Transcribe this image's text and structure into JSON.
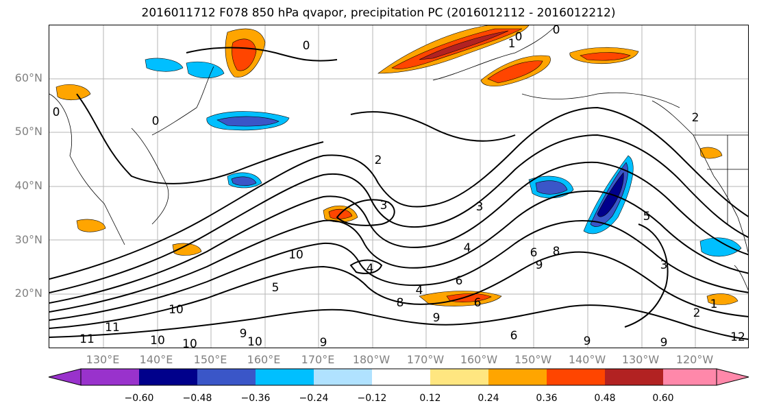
{
  "title": "2016011712 F078 850 hPa qvapor, precipitation PC (2016012112 - 2016012212)",
  "lat_labels": [
    "60°N",
    "50°N",
    "40°N",
    "30°N",
    "20°N"
  ],
  "lon_labels": [
    "130°E",
    "140°E",
    "150°E",
    "160°E",
    "170°E",
    "180°W",
    "170°W",
    "160°W",
    "150°W",
    "140°W",
    "130°W",
    "120°W"
  ],
  "colorbar": {
    "colors": [
      "#9932cc",
      "#00008b",
      "#3a56c8",
      "#00bfff",
      "#b0e2ff",
      "#ffffff",
      "#ffe680",
      "#ffa500",
      "#ff4500",
      "#b22222",
      "#ff88aa"
    ],
    "tick_labels": [
      "−0.60",
      "−0.48",
      "−0.36",
      "−0.24",
      "−0.12",
      "0.12",
      "0.24",
      "0.36",
      "0.48",
      "0.60"
    ]
  },
  "contour_labels": [
    "0",
    "0",
    "0",
    "1",
    "0",
    "0",
    "2",
    "2",
    "2",
    "3",
    "3",
    "3",
    "4",
    "4",
    "4",
    "5",
    "5",
    "6",
    "6",
    "6",
    "6",
    "8",
    "8",
    "9",
    "9",
    "9",
    "9",
    "9",
    "9",
    "10",
    "10",
    "10",
    "10",
    "10",
    "11",
    "11",
    "1",
    "12"
  ]
}
